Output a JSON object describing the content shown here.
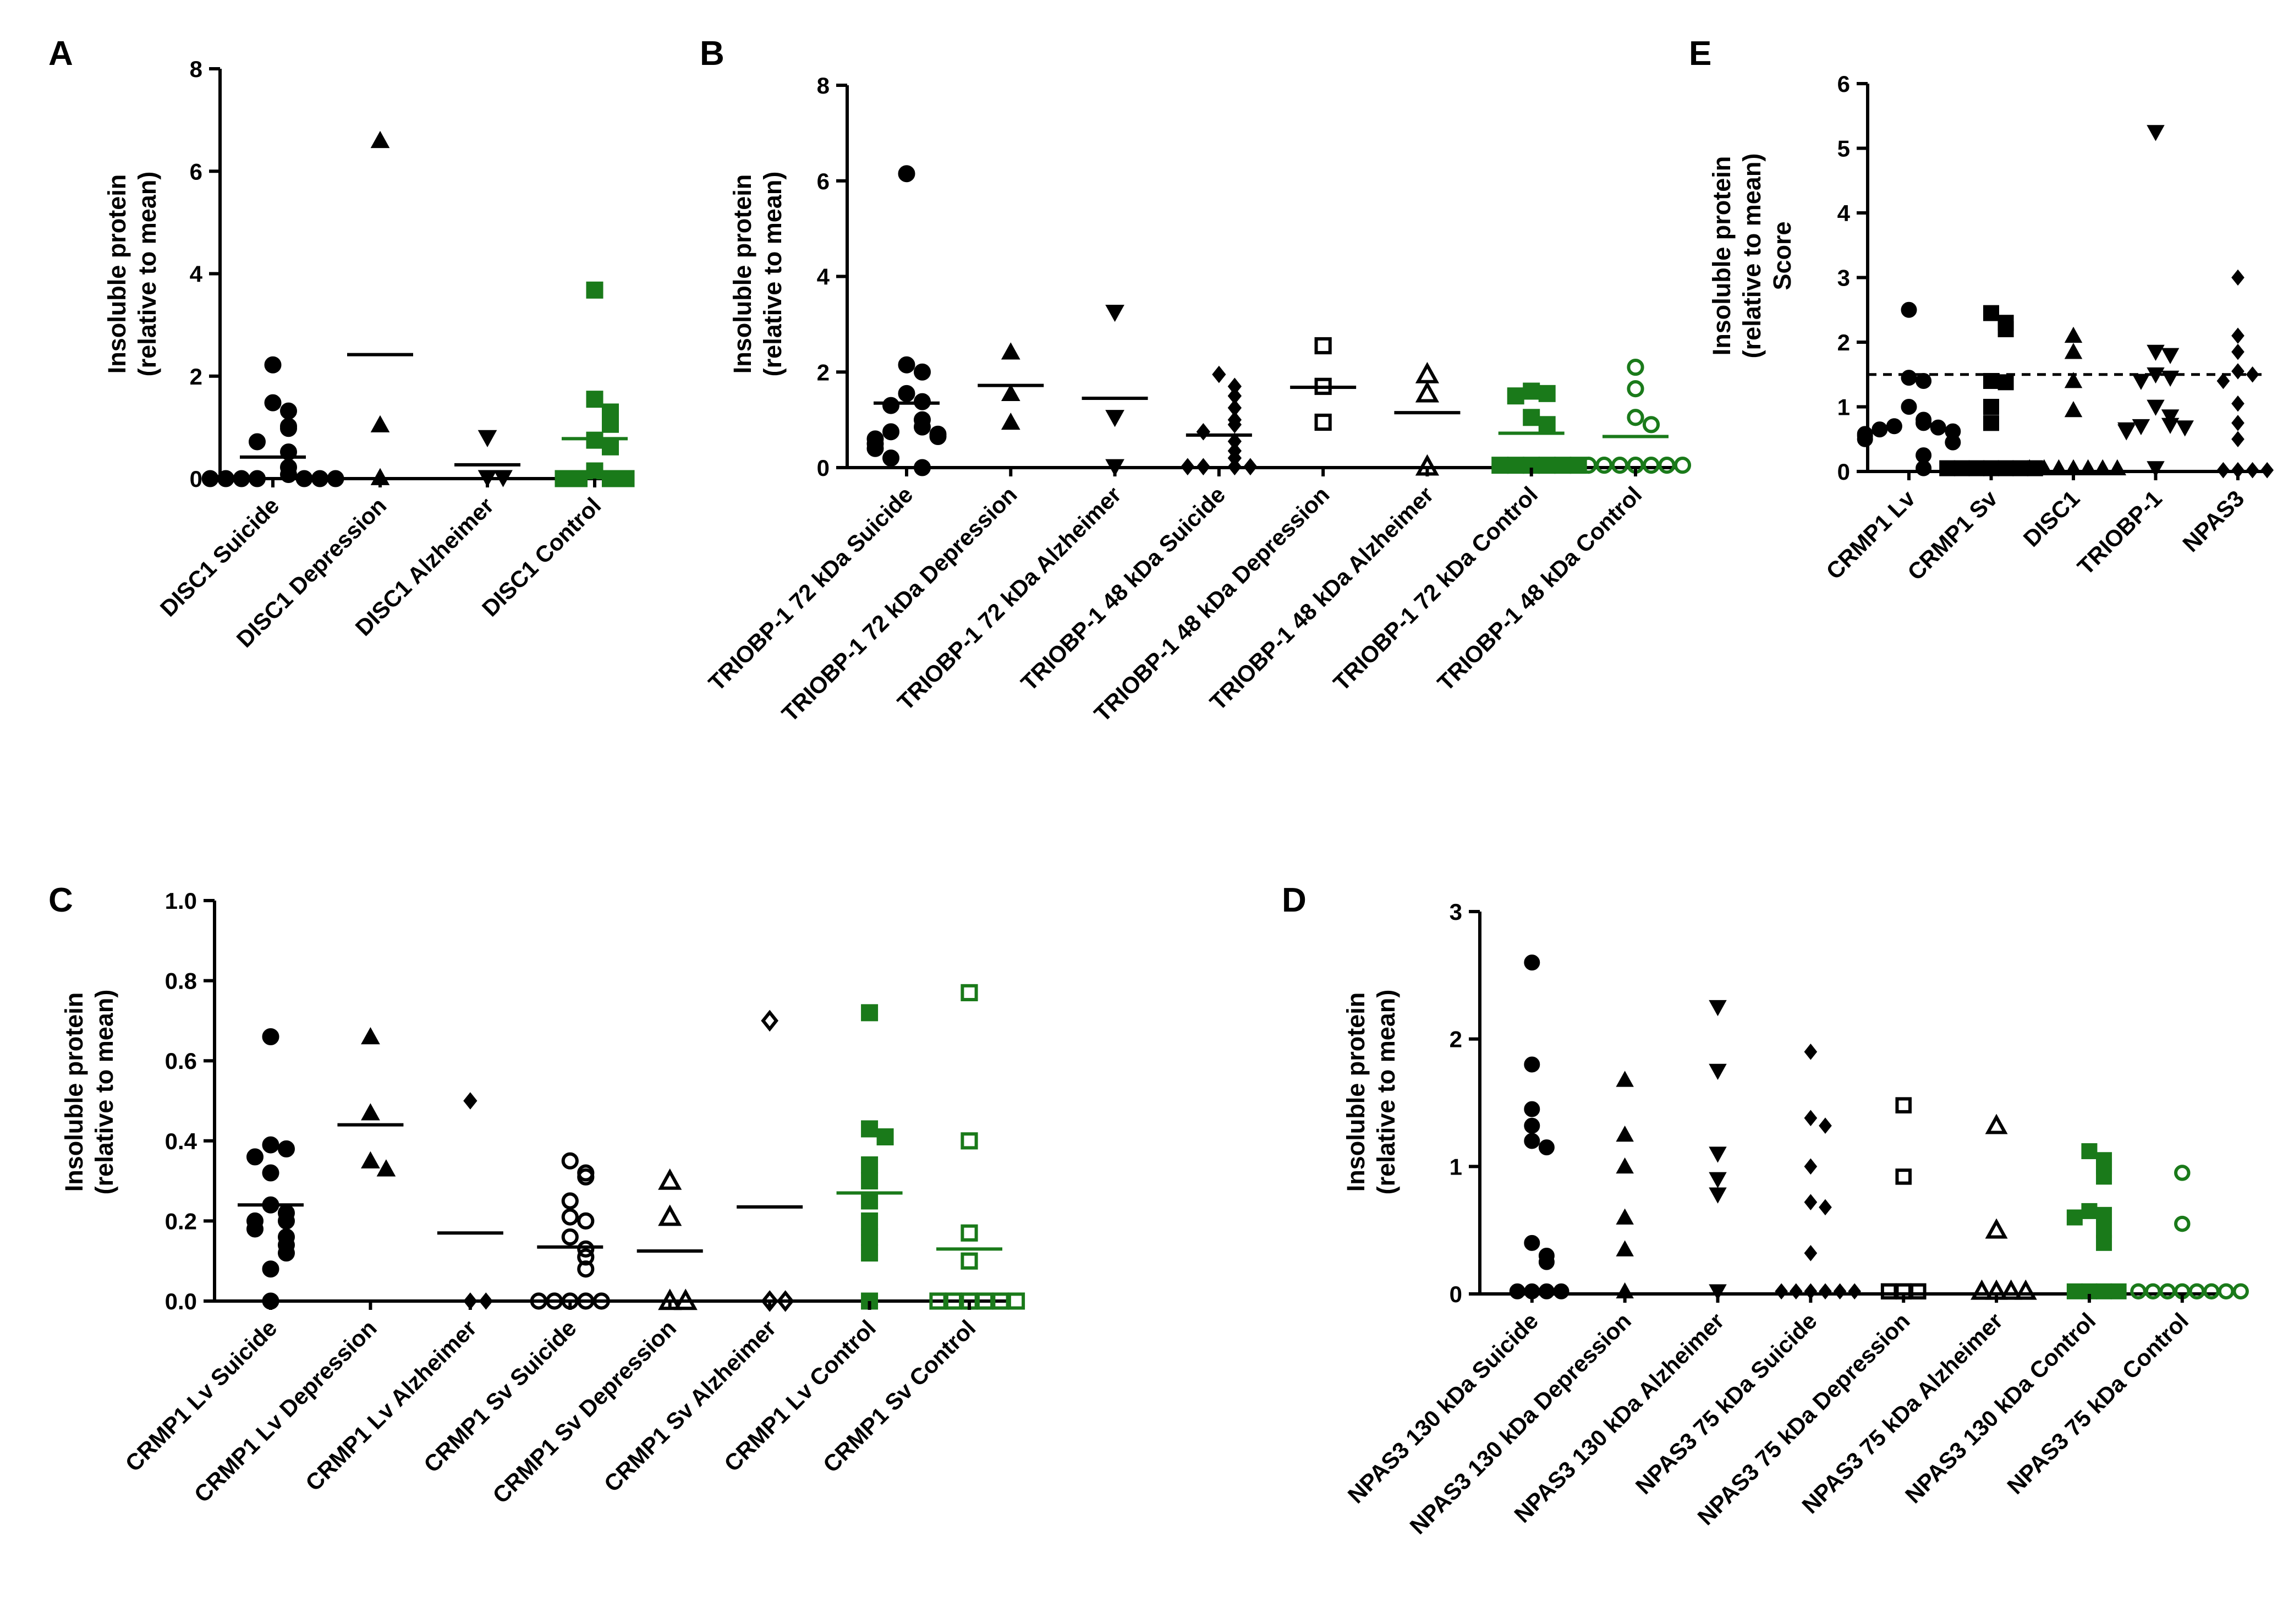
{
  "colors": {
    "black": "#000000",
    "green": "#1a7a1a",
    "background": "#ffffff"
  },
  "chart_data": [
    {
      "id": "A",
      "panel_label": "A",
      "type": "scatter",
      "ylabel": [
        "Insoluble protein",
        "(relative to mean)"
      ],
      "ylim": [
        0,
        8
      ],
      "yticks": [
        "0",
        "2",
        "4",
        "6",
        "8"
      ],
      "ytick_values": [
        0,
        2,
        4,
        6,
        8
      ],
      "groups": [
        {
          "name": "DISC1 Suicide",
          "marker": "circle",
          "fill": true,
          "color": "#000000",
          "mean": 0.42,
          "values": [
            2.22,
            1.48,
            1.32,
            1.02,
            0.98,
            0.72,
            0.52,
            0.22,
            0.08,
            0,
            0,
            0,
            0,
            0,
            0,
            0
          ]
        },
        {
          "name": "DISC1 Depression",
          "marker": "triangle-up",
          "fill": true,
          "color": "#000000",
          "mean": 2.42,
          "values": [
            6.6,
            1.05,
            0.02
          ]
        },
        {
          "name": "DISC1 Alzheimer",
          "marker": "triangle-down",
          "fill": true,
          "color": "#000000",
          "mean": 0.27,
          "values": [
            0.8,
            0.02,
            0.02
          ]
        },
        {
          "name": "DISC1 Control",
          "marker": "square",
          "fill": true,
          "color": "#1a7a1a",
          "mean": 0.78,
          "values": [
            3.68,
            1.55,
            1.3,
            1.06,
            0.75,
            0.62,
            0.15,
            0,
            0,
            0,
            0
          ]
        }
      ]
    },
    {
      "id": "B",
      "panel_label": "B",
      "type": "scatter",
      "ylabel": [
        "Insoluble protein",
        "(relative to mean)"
      ],
      "ylim": [
        0,
        8
      ],
      "yticks": [
        "0",
        "2",
        "4",
        "6",
        "8"
      ],
      "ytick_values": [
        0,
        2,
        4,
        6,
        8
      ],
      "groups": [
        {
          "name": "TRIOBP-1 72 kDa Suicide",
          "marker": "circle",
          "fill": true,
          "color": "#000000",
          "mean": 1.35,
          "values": [
            6.15,
            2.15,
            2.0,
            1.55,
            1.38,
            1.3,
            1.0,
            0.85,
            0.75,
            0.7,
            0.65,
            0.6,
            0.5,
            0.4,
            0.2,
            0
          ]
        },
        {
          "name": "TRIOBP-1 72 kDa Depression",
          "marker": "triangle-up",
          "fill": true,
          "color": "#000000",
          "mean": 1.72,
          "values": [
            2.42,
            1.55,
            0.95
          ]
        },
        {
          "name": "TRIOBP-1 72 kDa Alzheimer",
          "marker": "triangle-down",
          "fill": true,
          "color": "#000000",
          "mean": 1.45,
          "values": [
            3.25,
            1.05,
            0.02
          ]
        },
        {
          "name": "TRIOBP-1 48 kDa Suicide",
          "marker": "diamond",
          "fill": true,
          "color": "#000000",
          "mean": 0.68,
          "values": [
            1.95,
            1.7,
            1.5,
            1.25,
            1.0,
            0.9,
            0.75,
            0.55,
            0.35,
            0.2,
            0.02,
            0.02,
            0.02,
            0.02
          ]
        },
        {
          "name": "TRIOBP-1 48 kDa Depression",
          "marker": "square",
          "fill": false,
          "color": "#000000",
          "mean": 1.68,
          "values": [
            2.55,
            1.7,
            0.95
          ]
        },
        {
          "name": "TRIOBP-1 48 kDa Alzheimer",
          "marker": "triangle-up",
          "fill": false,
          "color": "#000000",
          "mean": 1.15,
          "values": [
            1.95,
            1.55,
            0.02
          ]
        },
        {
          "name": "TRIOBP-1 72 kDa Control",
          "marker": "square",
          "fill": true,
          "color": "#1a7a1a",
          "mean": 0.72,
          "values": [
            1.6,
            1.55,
            1.5,
            1.05,
            0.9,
            0.05,
            0.05,
            0.05,
            0.05,
            0.05,
            0.05
          ]
        },
        {
          "name": "TRIOBP-1 48 kDa Control",
          "marker": "circle",
          "fill": false,
          "color": "#1a7a1a",
          "mean": 0.65,
          "values": [
            2.1,
            1.65,
            1.05,
            0.9,
            0.05,
            0.05,
            0.05,
            0.05,
            0.05,
            0.05,
            0.05
          ]
        }
      ]
    },
    {
      "id": "E",
      "panel_label": "E",
      "type": "scatter",
      "ylabel": [
        "Insoluble protein",
        "(relative to mean)",
        "Score"
      ],
      "ylim": [
        0,
        6
      ],
      "yticks": [
        "0",
        "1",
        "2",
        "3",
        "4",
        "5",
        "6"
      ],
      "ytick_values": [
        0,
        1,
        2,
        3,
        4,
        5,
        6
      ],
      "threshold": 1.5,
      "groups": [
        {
          "name": "CRMP1 Lv",
          "marker": "circle",
          "fill": true,
          "color": "#000000",
          "values": [
            2.5,
            1.45,
            1.4,
            1.0,
            0.8,
            0.75,
            0.7,
            0.68,
            0.65,
            0.62,
            0.58,
            0.55,
            0.5,
            0.45,
            0.25,
            0.05
          ]
        },
        {
          "name": "CRMP1 Sv",
          "marker": "square",
          "fill": true,
          "color": "#000000",
          "values": [
            2.45,
            2.3,
            2.2,
            1.4,
            1.38,
            1.0,
            0.75,
            0.05,
            0.05,
            0.05,
            0.05,
            0.05,
            0.05,
            0.05
          ]
        },
        {
          "name": "DISC1",
          "marker": "triangle-up",
          "fill": true,
          "color": "#000000",
          "values": [
            2.1,
            1.85,
            1.4,
            0.95,
            0.05,
            0.05,
            0.05,
            0.05,
            0.05,
            0.05,
            0.05
          ]
        },
        {
          "name": "TRIOBP-1",
          "marker": "triangle-down",
          "fill": true,
          "color": "#000000",
          "values": [
            5.25,
            1.85,
            1.8,
            1.5,
            1.45,
            1.4,
            1.0,
            0.85,
            0.72,
            0.7,
            0.68,
            0.65,
            0.62,
            0.05
          ]
        },
        {
          "name": "NPAS3",
          "marker": "diamond",
          "fill": true,
          "color": "#000000",
          "values": [
            3.0,
            2.1,
            1.85,
            1.55,
            1.5,
            1.4,
            1.05,
            0.75,
            0.5,
            0.02,
            0.02,
            0.02,
            0.02
          ]
        }
      ]
    },
    {
      "id": "C",
      "panel_label": "C",
      "type": "scatter",
      "ylabel": [
        "Insoluble protein",
        "(relative to mean)"
      ],
      "ylim": [
        0,
        1.0
      ],
      "yticks": [
        "0.0",
        "0.2",
        "0.4",
        "0.6",
        "0.8",
        "1.0"
      ],
      "ytick_values": [
        0,
        0.2,
        0.4,
        0.6,
        0.8,
        1.0
      ],
      "groups": [
        {
          "name": "CRMP1 Lv Suicide",
          "marker": "circle",
          "fill": true,
          "color": "#000000",
          "mean": 0.24,
          "values": [
            0.66,
            0.39,
            0.38,
            0.36,
            0.32,
            0.24,
            0.22,
            0.2,
            0.2,
            0.18,
            0.16,
            0.14,
            0.12,
            0.08,
            0.0
          ]
        },
        {
          "name": "CRMP1 Lv Depression",
          "marker": "triangle-up",
          "fill": true,
          "color": "#000000",
          "mean": 0.44,
          "values": [
            0.66,
            0.47,
            0.35,
            0.33
          ]
        },
        {
          "name": "CRMP1 Lv Alzheimer",
          "marker": "diamond",
          "fill": true,
          "color": "#000000",
          "mean": 0.17,
          "values": [
            0.5,
            0.0,
            0.0
          ]
        },
        {
          "name": "CRMP1 Sv Suicide",
          "marker": "circle",
          "fill": false,
          "color": "#000000",
          "mean": 0.135,
          "values": [
            0.35,
            0.32,
            0.31,
            0.25,
            0.21,
            0.2,
            0.16,
            0.13,
            0.11,
            0.08,
            0.0,
            0.0,
            0.0,
            0.0,
            0.0
          ]
        },
        {
          "name": "CRMP1 Sv Depression",
          "marker": "triangle-up",
          "fill": false,
          "color": "#000000",
          "mean": 0.125,
          "values": [
            0.3,
            0.21,
            0.0,
            0.0
          ]
        },
        {
          "name": "CRMP1 Sv Alzheimer",
          "marker": "diamond",
          "fill": false,
          "color": "#000000",
          "mean": 0.235,
          "values": [
            0.7,
            0.0,
            0.0
          ]
        },
        {
          "name": "CRMP1 Lv Control",
          "marker": "square",
          "fill": true,
          "color": "#1a7a1a",
          "mean": 0.27,
          "values": [
            0.72,
            0.43,
            0.41,
            0.34,
            0.3,
            0.25,
            0.2,
            0.16,
            0.12,
            0.0
          ]
        },
        {
          "name": "CRMP1 Sv Control",
          "marker": "square",
          "fill": false,
          "color": "#1a7a1a",
          "mean": 0.13,
          "values": [
            0.77,
            0.4,
            0.17,
            0.1,
            0.0,
            0.0,
            0.0,
            0.0,
            0.0,
            0.0
          ]
        }
      ]
    },
    {
      "id": "D",
      "panel_label": "D",
      "type": "scatter",
      "ylabel": [
        "Insoluble protein",
        "(relative to mean)"
      ],
      "ylim": [
        0,
        3
      ],
      "yticks": [
        "0",
        "1",
        "2",
        "3"
      ],
      "ytick_values": [
        0,
        1,
        2,
        3
      ],
      "groups": [
        {
          "name": "NPAS3 130 kDa Suicide",
          "marker": "circle",
          "fill": true,
          "color": "#000000",
          "values": [
            2.6,
            1.8,
            1.45,
            1.32,
            1.2,
            1.15,
            0.4,
            0.3,
            0.25,
            0.02,
            0.02,
            0.02,
            0.02
          ]
        },
        {
          "name": "NPAS3 130 kDa Depression",
          "marker": "triangle-up",
          "fill": true,
          "color": "#000000",
          "values": [
            1.68,
            1.25,
            1.0,
            0.6,
            0.35,
            0.02
          ]
        },
        {
          "name": "NPAS3 130 kDa Alzheimer",
          "marker": "triangle-down",
          "fill": true,
          "color": "#000000",
          "values": [
            2.25,
            1.75,
            1.1,
            0.9,
            0.78,
            0.02
          ]
        },
        {
          "name": "NPAS3 75 kDa Suicide",
          "marker": "diamond",
          "fill": true,
          "color": "#000000",
          "values": [
            1.9,
            1.38,
            1.32,
            1.0,
            0.72,
            0.68,
            0.32,
            0.02,
            0.02,
            0.02,
            0.02,
            0.02,
            0.02
          ]
        },
        {
          "name": "NPAS3 75 kDa Depression",
          "marker": "square",
          "fill": false,
          "color": "#000000",
          "values": [
            1.48,
            0.92,
            0.02,
            0.02,
            0.02
          ]
        },
        {
          "name": "NPAS3 75 kDa Alzheimer",
          "marker": "triangle-up",
          "fill": false,
          "color": "#000000",
          "values": [
            1.32,
            0.5,
            0.02,
            0.02,
            0.02,
            0.02
          ]
        },
        {
          "name": "NPAS3 130 kDa Control",
          "marker": "square",
          "fill": true,
          "color": "#1a7a1a",
          "values": [
            1.12,
            1.05,
            1.0,
            0.92,
            0.65,
            0.62,
            0.6,
            0.5,
            0.4,
            0.02,
            0.02,
            0.02,
            0.02
          ]
        },
        {
          "name": "NPAS3 75 kDa Control",
          "marker": "circle",
          "fill": false,
          "color": "#1a7a1a",
          "values": [
            0.95,
            0.55,
            0.02,
            0.02,
            0.02,
            0.02,
            0.02,
            0.02,
            0.02,
            0.02
          ]
        }
      ]
    }
  ]
}
